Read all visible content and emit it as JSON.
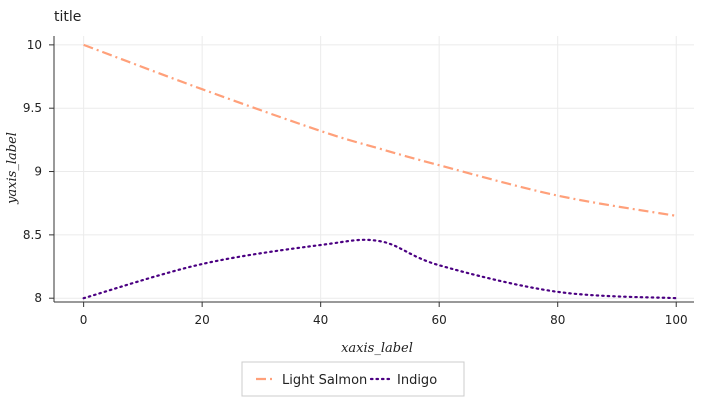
{
  "chart_data": {
    "type": "line",
    "title": "title",
    "xlabel": "xaxis_label",
    "ylabel": "yaxis_label",
    "xlim": [
      -5,
      103
    ],
    "ylim": [
      7.97,
      10.07
    ],
    "xticks": [
      0,
      20,
      40,
      60,
      80,
      100
    ],
    "yticks": [
      8,
      8.5,
      9,
      9.5,
      10
    ],
    "xtick_labels": [
      "0",
      "20",
      "40",
      "60",
      "80",
      "100"
    ],
    "ytick_labels": [
      "8",
      "8.5",
      "9",
      "9.5",
      "10"
    ],
    "grid": true,
    "legend_position": "bottom",
    "series": [
      {
        "name": "Light Salmon",
        "color": "#ffa07a",
        "style": "dashdot",
        "x": [
          0,
          20,
          40,
          50,
          60,
          80,
          100
        ],
        "y": [
          10.0,
          9.65,
          9.32,
          9.18,
          9.05,
          8.81,
          8.65
        ]
      },
      {
        "name": "Indigo",
        "color": "#4b0082",
        "style": "dotted",
        "x": [
          0,
          20,
          40,
          50,
          60,
          80,
          100
        ],
        "y": [
          8.0,
          8.27,
          8.42,
          8.45,
          8.26,
          8.05,
          8.0
        ]
      }
    ]
  }
}
